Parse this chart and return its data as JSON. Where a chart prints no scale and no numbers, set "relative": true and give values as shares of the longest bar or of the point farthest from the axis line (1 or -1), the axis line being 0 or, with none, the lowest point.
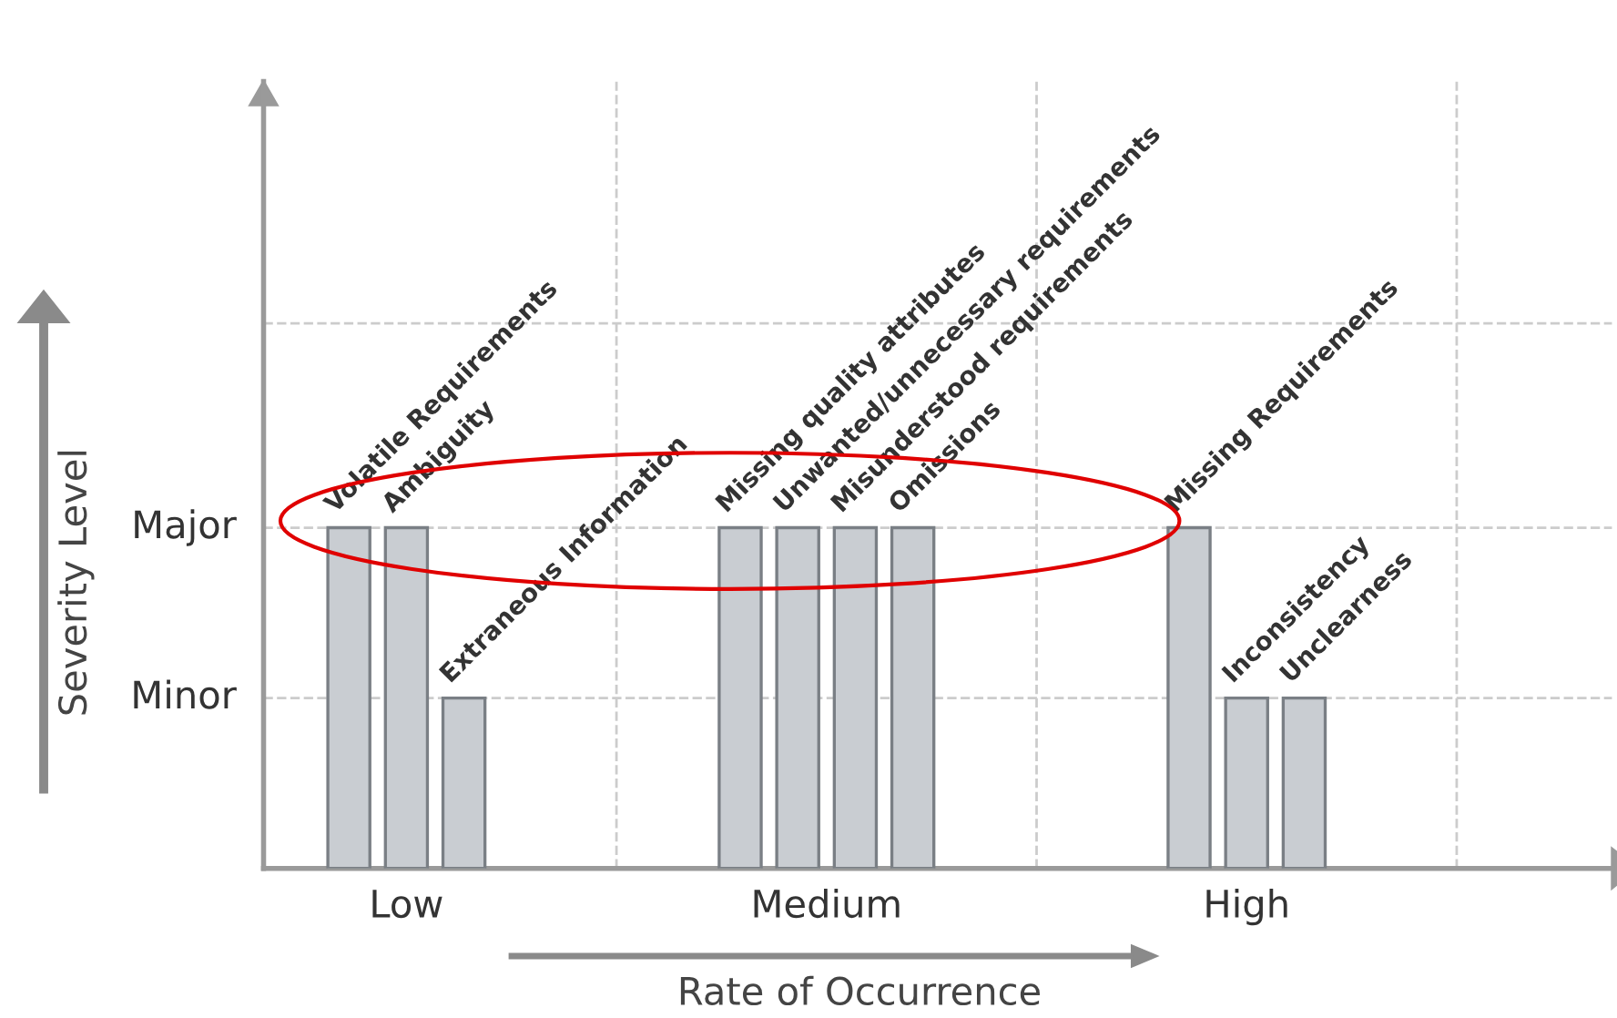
{
  "chart_data": {
    "type": "bar",
    "xlabel": "Rate of Occurrence",
    "ylabel": "Severity Level",
    "relative": true,
    "categories": [
      "Low",
      "Medium",
      "High"
    ],
    "series": [
      {
        "name": "Volatile Requirements",
        "color": "#c9cdd2",
        "values": [
          1,
          null,
          null
        ]
      },
      {
        "name": "Ambiguity",
        "color": "#c9cdd2",
        "values": [
          1,
          null,
          null
        ]
      },
      {
        "name": "Extraneous Information",
        "color": "#c9cdd2",
        "values": [
          0.5,
          null,
          null
        ]
      },
      {
        "name": "Missing quality attributes",
        "color": "#c9cdd2",
        "values": [
          null,
          1,
          null
        ]
      },
      {
        "name": "Unwanted/unnecessary requirements",
        "color": "#c9cdd2",
        "values": [
          null,
          1,
          null
        ]
      },
      {
        "name": "Misunderstood requirements",
        "color": "#c9cdd2",
        "values": [
          null,
          1,
          null
        ]
      },
      {
        "name": "Omissions",
        "color": "#c9cdd2",
        "values": [
          null,
          1,
          null
        ]
      },
      {
        "name": "Missing Requirements",
        "color": "#c9cdd2",
        "values": [
          null,
          null,
          1
        ]
      },
      {
        "name": "Inconsistency",
        "color": "#c9cdd2",
        "values": [
          null,
          null,
          0.5
        ]
      },
      {
        "name": "Unclearness",
        "color": "#c9cdd2",
        "values": [
          null,
          null,
          0.5
        ]
      }
    ],
    "annotations": [
      "Major",
      "Minor"
    ]
  }
}
